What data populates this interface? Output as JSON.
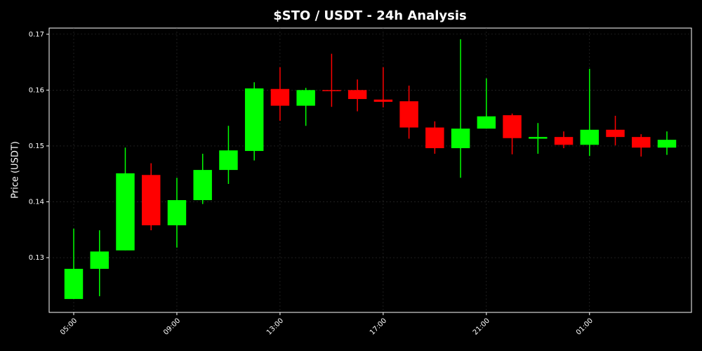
{
  "chart_data": {
    "type": "candlestick",
    "title": "$STO / USDT - 24h Analysis",
    "ylabel": "Price (USDT)",
    "categories": [
      "05:00",
      null,
      null,
      null,
      "09:00",
      null,
      null,
      null,
      "13:00",
      null,
      null,
      null,
      "17:00",
      null,
      null,
      null,
      "21:00",
      null,
      null,
      null,
      "01:00",
      null,
      null,
      null
    ],
    "open": [
      0.1226,
      0.128,
      0.1313,
      0.1448,
      0.1358,
      0.1403,
      0.1457,
      0.1491,
      0.1602,
      0.1572,
      0.16,
      0.16,
      0.1583,
      0.158,
      0.1533,
      0.1496,
      0.1531,
      0.1555,
      0.1513,
      0.1516,
      0.1502,
      0.1529,
      0.1516,
      0.1497
    ],
    "high": [
      0.1352,
      0.1349,
      0.1497,
      0.1469,
      0.1443,
      0.1486,
      0.1536,
      0.1614,
      0.1641,
      0.1604,
      0.1665,
      0.1619,
      0.1641,
      0.1608,
      0.1544,
      0.1691,
      0.1621,
      0.1558,
      0.1541,
      0.1526,
      0.1638,
      0.1554,
      0.1521,
      0.1526
    ],
    "low": [
      0.1226,
      0.1231,
      0.1313,
      0.1349,
      0.1318,
      0.1396,
      0.1432,
      0.1474,
      0.1545,
      0.1536,
      0.157,
      0.1562,
      0.1569,
      0.1513,
      0.1486,
      0.1443,
      0.1531,
      0.1485,
      0.1486,
      0.1496,
      0.1482,
      0.1501,
      0.1481,
      0.1484
    ],
    "close": [
      0.128,
      0.1311,
      0.1451,
      0.1358,
      0.1403,
      0.1457,
      0.1492,
      0.1603,
      0.1572,
      0.16,
      0.1599,
      0.1584,
      0.1579,
      0.1533,
      0.1496,
      0.1531,
      0.1553,
      0.1514,
      0.1516,
      0.1502,
      0.1529,
      0.1516,
      0.1497,
      0.1511
    ],
    "up_color": "#00ff00",
    "down_color": "#ff0000",
    "ylim": [
      0.1202,
      0.1711
    ],
    "yticks": [
      0.13,
      0.14,
      0.15,
      0.16,
      0.17
    ],
    "grid": true
  }
}
